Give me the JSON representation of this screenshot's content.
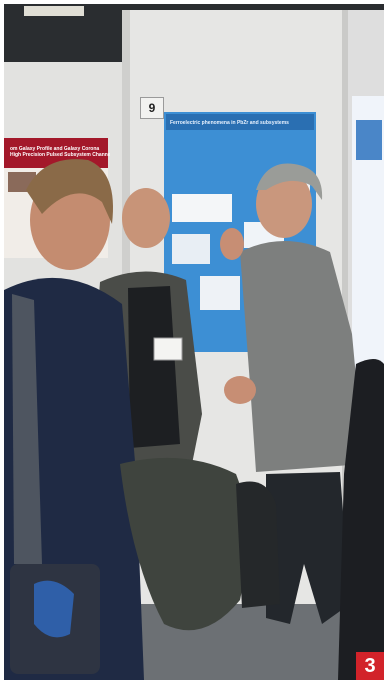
{
  "photo": {
    "booth_number": "9",
    "poster_title": "Ferroelectric phenomena in PbZr and subsystems",
    "left_poster_text": "om Galaxy Profile and Galaxy Corona\nHigh Precision Pulsed Subsystem Channels"
  },
  "badge": {
    "label": "3"
  },
  "colors": {
    "badge": "#d2232a",
    "poster": "#3d8fd4",
    "panel": "#e4e4e2"
  }
}
